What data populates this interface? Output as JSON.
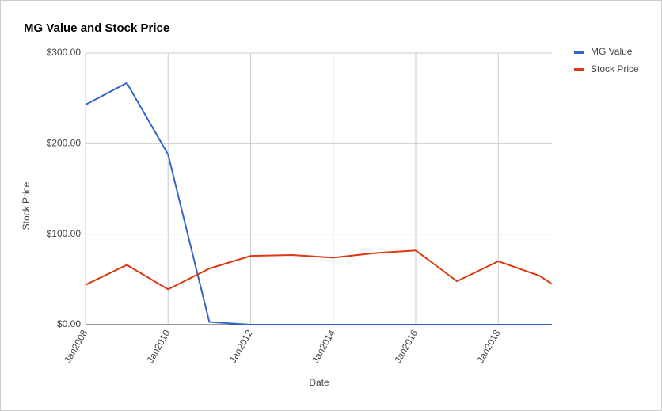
{
  "chart_data": {
    "type": "line",
    "title": "MG Value and Stock Price",
    "x_label": "Date",
    "y_label": "Stock Price",
    "x": [
      2008,
      2009,
      2010,
      2011,
      2012,
      2013,
      2014,
      2015,
      2016,
      2017,
      2018,
      2019,
      2019.3
    ],
    "series": [
      {
        "name": "MG Value",
        "color": "#3366cc",
        "values": [
          243,
          267,
          188,
          3,
          0,
          0,
          0,
          0,
          0,
          0,
          0,
          0,
          0
        ]
      },
      {
        "name": "Stock Price",
        "color": "#dc3912",
        "values": [
          44,
          66,
          39,
          62,
          76,
          77,
          74,
          79,
          82,
          48,
          70,
          54,
          45
        ]
      }
    ],
    "xlim": [
      2008,
      2019.3
    ],
    "xticks": [
      {
        "value": 2008,
        "label": "Jan2008"
      },
      {
        "value": 2010,
        "label": "Jan2010"
      },
      {
        "value": 2012,
        "label": "Jan2012"
      },
      {
        "value": 2014,
        "label": "Jan2014"
      },
      {
        "value": 2016,
        "label": "Jan2016"
      },
      {
        "value": 2018,
        "label": "Jan2018"
      }
    ],
    "ylim": [
      0,
      300
    ],
    "yticks": [
      {
        "value": 0,
        "label": "$0.00"
      },
      {
        "value": 100,
        "label": "$100.00"
      },
      {
        "value": 200,
        "label": "$200.00"
      },
      {
        "value": 300,
        "label": "$300.00"
      }
    ],
    "grid": true,
    "legend": "right"
  }
}
